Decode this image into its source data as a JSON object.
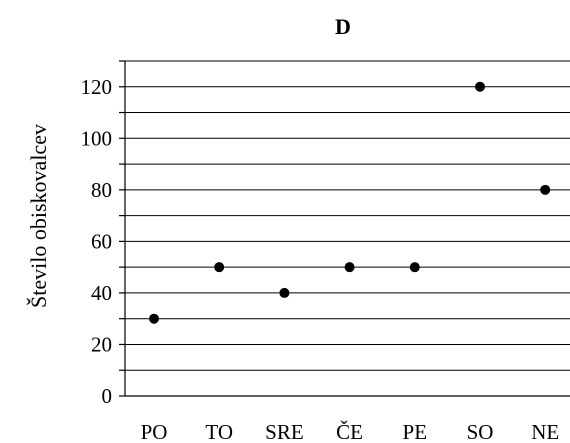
{
  "chart_data": {
    "type": "scatter",
    "title": "D",
    "xlabel": "",
    "ylabel": "Število obiskovalcev",
    "categories": [
      "PO",
      "TO",
      "SRE",
      "ČE",
      "PE",
      "SO",
      "NE"
    ],
    "series": [
      {
        "values": [
          30,
          50,
          40,
          50,
          50,
          120,
          80
        ]
      }
    ],
    "ylim": [
      0,
      130
    ],
    "yticks": [
      0,
      20,
      40,
      60,
      80,
      100,
      120
    ],
    "gridlines": [
      10,
      20,
      30,
      40,
      50,
      60,
      70,
      80,
      90,
      100,
      110,
      120,
      130
    ],
    "grid": true,
    "legend": "none",
    "marker_color": "#000000"
  }
}
